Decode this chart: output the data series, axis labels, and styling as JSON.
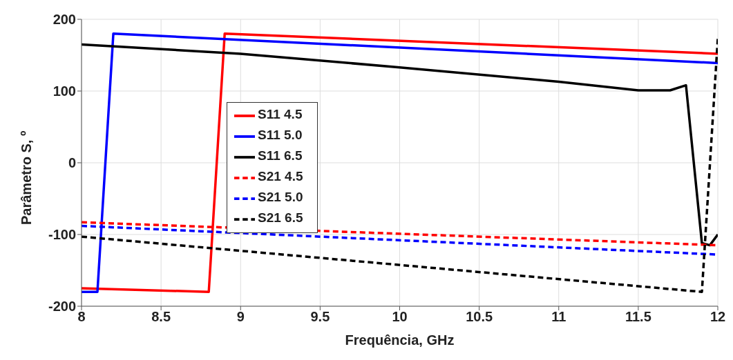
{
  "chart_data": {
    "type": "line",
    "xlabel": "Frequência, GHz",
    "ylabel": "Parâmetro S, º",
    "xlim": [
      8,
      12
    ],
    "xticks": [
      8,
      8.5,
      9,
      9.5,
      10,
      10.5,
      11,
      11.5,
      12
    ],
    "ylim": [
      -200,
      200
    ],
    "yticks": [
      -200,
      -100,
      0,
      100,
      200
    ],
    "grid": true,
    "legend": "left",
    "marker": "none",
    "series": [
      {
        "name": "S11 4.5",
        "color": "#ff0000",
        "line_style": "solid",
        "x": [
          8,
          8.8,
          8.9,
          12
        ],
        "values": [
          -175,
          -180,
          180,
          152
        ]
      },
      {
        "name": "S11 5.0",
        "color": "#0000ff",
        "line_style": "solid",
        "x": [
          8,
          8.1,
          8.2,
          12
        ],
        "values": [
          -180,
          -180,
          180,
          139
        ]
      },
      {
        "name": "S11 6.5",
        "color": "#000000",
        "line_style": "solid",
        "x": [
          8,
          9,
          10,
          11,
          11.5,
          11.7,
          11.8,
          11.9,
          11.95,
          12
        ],
        "values": [
          165,
          152,
          133,
          113,
          101,
          101,
          108,
          -112,
          -115,
          -100
        ]
      },
      {
        "name": "S21 4.5",
        "color": "#ff0000",
        "line_style": "dashed",
        "x": [
          8,
          12
        ],
        "values": [
          -83,
          -115
        ]
      },
      {
        "name": "S21 5.0",
        "color": "#0000ff",
        "line_style": "dashed",
        "x": [
          8,
          12
        ],
        "values": [
          -88,
          -128
        ]
      },
      {
        "name": "S21 6.5",
        "color": "#000000",
        "line_style": "dashed",
        "x": [
          8,
          11.9,
          12
        ],
        "values": [
          -103,
          -180,
          173
        ]
      }
    ]
  }
}
